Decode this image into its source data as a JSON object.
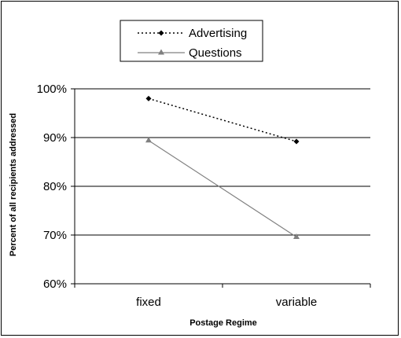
{
  "chart_data": {
    "type": "line",
    "categories": [
      "fixed",
      "variable"
    ],
    "series": [
      {
        "name": "Advertising",
        "values": [
          98,
          89.2
        ],
        "color": "#000000",
        "line_style": "dotted",
        "marker": "diamond"
      },
      {
        "name": "Questions",
        "values": [
          89.4,
          69.6
        ],
        "color": "#808080",
        "line_style": "solid",
        "marker": "triangle"
      }
    ],
    "y_ticks": [
      "60%",
      "70%",
      "80%",
      "90%",
      "100%"
    ],
    "ylim": [
      60,
      100
    ],
    "xlabel": "Postage Regime",
    "ylabel": "Percent of all recipients addressed",
    "grid": true,
    "legend_position": "top-center"
  }
}
